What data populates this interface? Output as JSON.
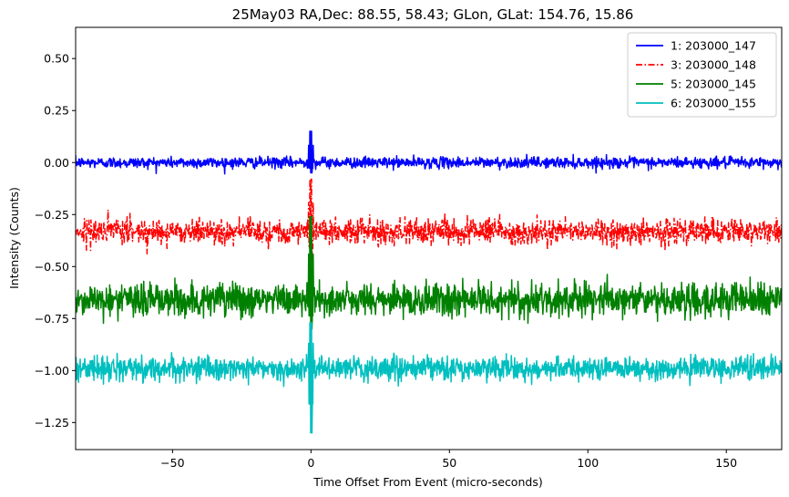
{
  "chart_data": {
    "type": "line",
    "title": "25May03 RA,Dec:   88.55,  58.43; GLon, GLat:  154.76,  15.86",
    "xlabel": "Time Offset From Event (micro-seconds)",
    "ylabel": "Intensity (Counts)",
    "xlim": [
      -85,
      170
    ],
    "ylim": [
      -1.38,
      0.65
    ],
    "xticks": [
      -50,
      0,
      50,
      100,
      150
    ],
    "xtick_labels": [
      "−50",
      "0",
      "50",
      "100",
      "150"
    ],
    "yticks": [
      0.5,
      0.25,
      0.0,
      -0.25,
      -0.5,
      -0.75,
      -1.0,
      -1.25
    ],
    "ytick_labels": [
      "0.50",
      "0.25",
      "0.00",
      "−0.25",
      "−0.50",
      "−0.75",
      "−1.00",
      "−1.25"
    ],
    "grid": false,
    "legend_position": "top-right",
    "event_time": 0,
    "series": [
      {
        "name": "1: 203000_147",
        "color": "#0000ff",
        "style": "solid",
        "baseline": 0.0,
        "noise": 0.013,
        "spike_max": 0.15,
        "spike_min": -0.05
      },
      {
        "name": "3: 203000_148",
        "color": "#ff0000",
        "style": "dashdot",
        "baseline": -0.33,
        "noise": 0.03,
        "spike_max": -0.08,
        "spike_min": -0.48
      },
      {
        "name": "5: 203000_145",
        "color": "#008000",
        "style": "solid",
        "baseline": -0.66,
        "noise": 0.04,
        "spike_max": -0.26,
        "spike_min": -0.8
      },
      {
        "name": "6: 203000_155",
        "color": "#00bfbf",
        "style": "solid",
        "baseline": -0.99,
        "noise": 0.028,
        "spike_max": -0.77,
        "spike_min": -1.3
      }
    ]
  }
}
